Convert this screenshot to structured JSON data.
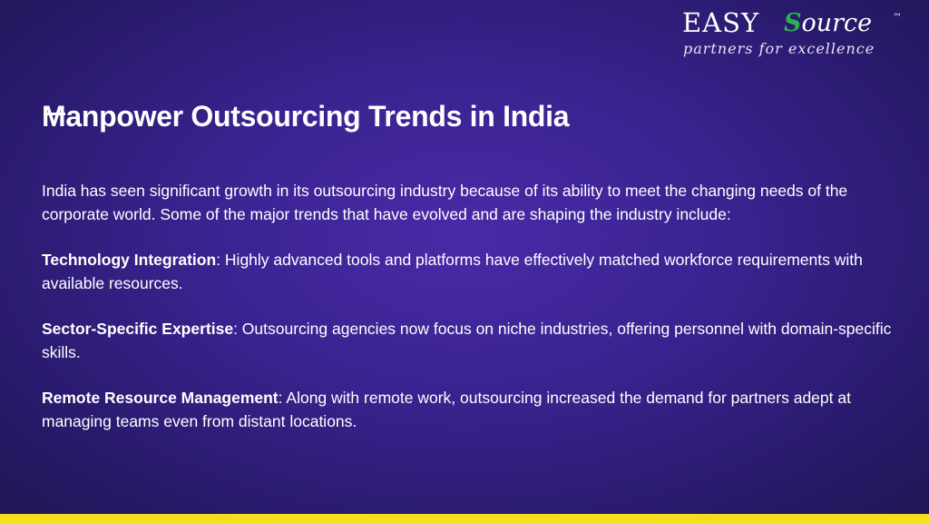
{
  "logo": {
    "brand_easy": "EASY",
    "brand_source_initial": "S",
    "brand_source_rest": "ource",
    "trademark": "™",
    "tagline": "partners for excellence"
  },
  "slide": {
    "title_first_letter": "M",
    "title_rest": "anpower Outsourcing Trends in India",
    "intro": "India has seen significant growth in its outsourcing industry because of its ability to meet the changing needs of the corporate world. Some of the major trends that have evolved and are shaping the industry include:",
    "trends": [
      {
        "heading": "Technology Integration",
        "text": ": Highly advanced tools and platforms have effectively matched workforce requirements with available resources."
      },
      {
        "heading": "Sector-Specific Expertise",
        "text": ": Outsourcing agencies now focus on niche industries, offering personnel with domain-specific skills."
      },
      {
        "heading": "Remote Resource Management",
        "text": ": Along with remote work, outsourcing increased the demand for partners adept at managing teams even from distant locations."
      }
    ]
  },
  "colors": {
    "background": "#3a2390",
    "logo_accent": "#2bb24c",
    "bottom_bar": "#f2e01c"
  }
}
